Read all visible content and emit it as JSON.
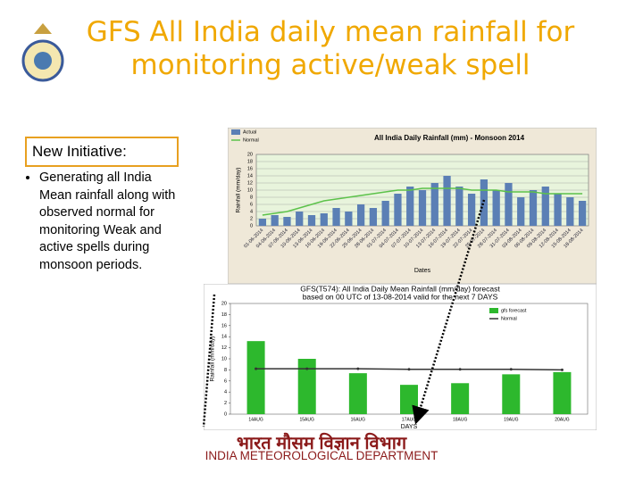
{
  "header": {
    "title": "GFS All India daily mean rainfall for monitoring active/weak spell"
  },
  "sidebar": {
    "heading": "New Initiative:",
    "bullets": [
      "Generating all India Mean rainfall along with observed normal for monitoring Weak and active spells during monsoon periods."
    ]
  },
  "chart_data": [
    {
      "type": "bar",
      "title": "All India Daily Rainfall (mm) - Monsoon 2014",
      "xlabel": "Dates",
      "ylabel": "Rainfall (mm/day)",
      "categories": [
        "01-06-2014",
        "04-06-2014",
        "07-06-2014",
        "10-06-2014",
        "13-06-2014",
        "16-06-2014",
        "19-06-2014",
        "22-06-2014",
        "25-06-2014",
        "28-06-2014",
        "01-07-2014",
        "04-07-2014",
        "07-07-2014",
        "10-07-2014",
        "13-07-2014",
        "16-07-2014",
        "19-07-2014",
        "22-07-2014",
        "25-07-2014",
        "28-07-2014",
        "31-07-2014",
        "03-08-2014",
        "06-08-2014",
        "09-08-2014",
        "12-08-2014",
        "15-08-2014",
        "18-08-2014"
      ],
      "series": [
        {
          "name": "Actual",
          "type": "bar",
          "color": "#5b7fb5",
          "values": [
            2,
            3,
            2.5,
            4,
            3,
            3.5,
            5,
            4,
            6,
            5,
            7,
            9,
            11,
            10,
            12,
            14,
            11,
            9,
            13,
            10,
            12,
            8,
            10,
            11,
            9,
            8,
            7
          ]
        },
        {
          "name": "Normal",
          "type": "line",
          "color": "#5cc24a",
          "values": [
            3,
            3.5,
            4,
            5,
            6,
            7,
            7.5,
            8,
            8.5,
            9,
            9.5,
            10,
            10,
            10.5,
            10.5,
            10.5,
            10.5,
            10,
            10,
            10,
            9.5,
            9.5,
            9.5,
            9,
            9,
            9,
            9
          ]
        }
      ],
      "ylim": [
        0,
        20
      ],
      "yticks": [
        0,
        2,
        4,
        6,
        8,
        10,
        12,
        14,
        16,
        18,
        20
      ],
      "grid": true,
      "legend": "upper left"
    },
    {
      "type": "bar",
      "title": "GFS(T574): All India Daily Mean Rainfall (mm/day) forecast",
      "subtitle": "based on 00 UTC of 13-08-2014 valid for the next 7 DAYS",
      "xlabel": "DAYS",
      "ylabel": "Rainfall (mm/day)",
      "categories": [
        "14AUG",
        "15AUG",
        "16AUG",
        "17AUG",
        "18AUG",
        "19AUG",
        "20AUG"
      ],
      "series": [
        {
          "name": "gfs forecast",
          "type": "bar",
          "color": "#2db82d",
          "values": [
            13.2,
            10,
            7.4,
            5.3,
            5.6,
            7.2,
            7.6
          ]
        },
        {
          "name": "Normal",
          "type": "line",
          "color": "#333333",
          "values": [
            8.2,
            8.2,
            8.2,
            8.1,
            8.1,
            8.1,
            8
          ]
        }
      ],
      "ylim": [
        0,
        20
      ],
      "yticks": [
        0,
        2,
        4,
        6,
        8,
        10,
        12,
        14,
        16,
        18,
        20
      ],
      "grid": false,
      "legend": "upper right"
    }
  ],
  "footer": {
    "hindi": "भारत मौसम विज्ञान विभाग",
    "english": "INDIA METEOROLOGICAL DEPARTMENT"
  }
}
